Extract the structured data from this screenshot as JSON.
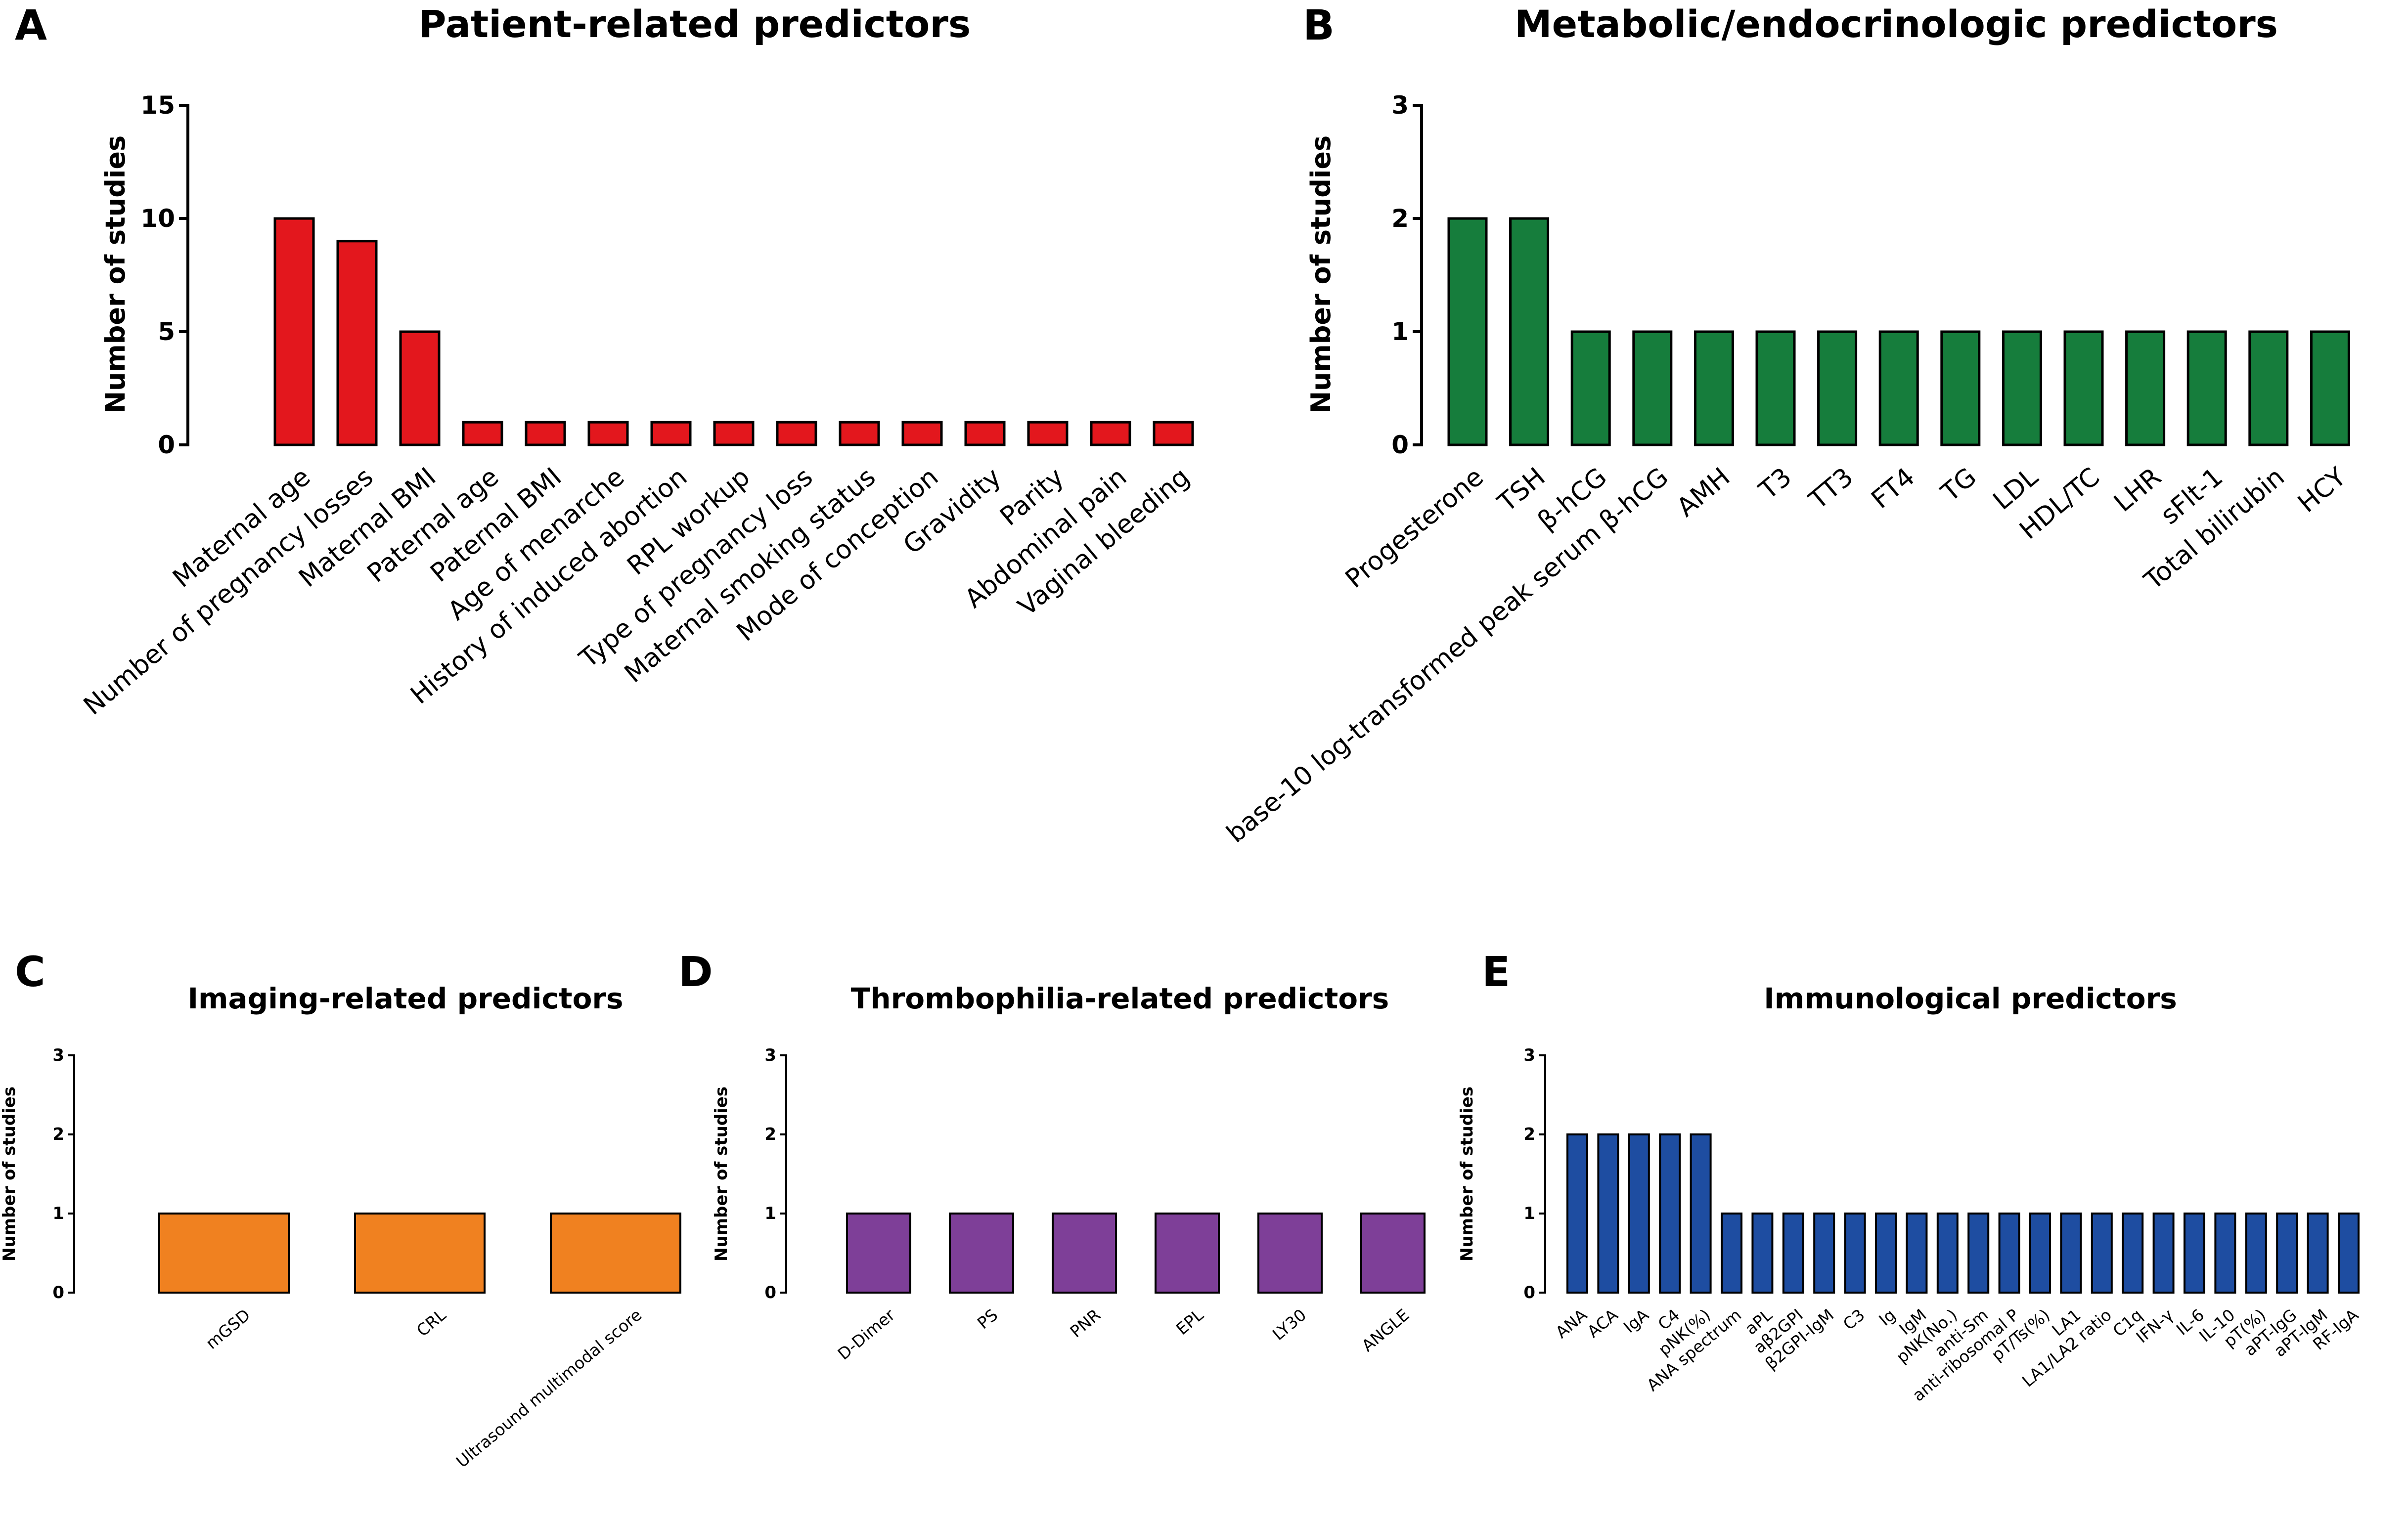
{
  "chart_data": [
    {
      "panel": "A",
      "type": "bar",
      "title": "Patient-related predictors",
      "xlabel": "",
      "ylabel": "Number of studies",
      "ylim": [
        0,
        15
      ],
      "yticks": [
        0,
        5,
        10,
        15
      ],
      "color": "#e3171d",
      "categories": [
        "Maternal age",
        "Number of pregnancy losses",
        "Maternal BMI",
        "Paternal age",
        "Paternal BMI",
        "Age of menarche",
        "History of induced abortion",
        "RPL workup",
        "Type of pregnancy loss",
        "Maternal smoking status",
        "Mode of conception",
        "Gravidity",
        "Parity",
        "Abdominal pain",
        "Vaginal bleeding"
      ],
      "values": [
        10,
        9,
        5,
        1,
        1,
        1,
        1,
        1,
        1,
        1,
        1,
        1,
        1,
        1,
        1
      ]
    },
    {
      "panel": "B",
      "type": "bar",
      "title": "Metabolic/endocrinologic predictors",
      "xlabel": "",
      "ylabel": "Number of studies",
      "ylim": [
        0,
        3
      ],
      "yticks": [
        0,
        1,
        2,
        3
      ],
      "color": "#167d3c",
      "categories": [
        "Progesterone",
        "TSH",
        "β-hCG",
        "base-10 log-transformed peak serum β-hCG",
        "AMH",
        "T3",
        "TT3",
        "FT4",
        "TG",
        "LDL",
        "HDL/TC",
        "LHR",
        "sFlt-1",
        "Total bilirubin",
        "HCY"
      ],
      "values": [
        2,
        2,
        1,
        1,
        1,
        1,
        1,
        1,
        1,
        1,
        1,
        1,
        1,
        1,
        1
      ]
    },
    {
      "panel": "C",
      "type": "bar",
      "title": "Imaging-related predictors",
      "xlabel": "",
      "ylabel": "Number of studies",
      "ylim": [
        0,
        3
      ],
      "yticks": [
        0,
        1,
        2,
        3
      ],
      "color": "#f08120",
      "categories": [
        "mGSD",
        "CRL",
        "Ultrasound multimodal score"
      ],
      "values": [
        1,
        1,
        1
      ]
    },
    {
      "panel": "D",
      "type": "bar",
      "title": "Thrombophilia-related predictors",
      "xlabel": "",
      "ylabel": "Number of studies",
      "ylim": [
        0,
        3
      ],
      "yticks": [
        0,
        1,
        2,
        3
      ],
      "color": "#7e3f98",
      "categories": [
        "D-Dimer",
        "PS",
        "PNR",
        "EPL",
        "LY30",
        "ANGLE"
      ],
      "values": [
        1,
        1,
        1,
        1,
        1,
        1
      ]
    },
    {
      "panel": "E",
      "type": "bar",
      "title": "Immunological predictors",
      "xlabel": "",
      "ylabel": "Number of studies",
      "ylim": [
        0,
        3
      ],
      "yticks": [
        0,
        1,
        2,
        3
      ],
      "color": "#1e4da1",
      "categories": [
        "ANA",
        "ACA",
        "IgA",
        "C4",
        "pNK(%)",
        "ANA spectrum",
        "aPL",
        "aβ2GPI",
        "β2GPI-IgM",
        "C3",
        "Ig",
        "IgM",
        "pNK(No.)",
        "anti-Sm",
        "anti-ribosomal P",
        "pT/Ts(%)",
        "LA1",
        "LA1/LA2 ratio",
        "C1q",
        "IFN-γ",
        "IL-6",
        "IL-10",
        "pT(%)",
        "aPT-IgG",
        "aPT-IgM",
        "RF-IgA"
      ],
      "values": [
        2,
        2,
        2,
        2,
        2,
        1,
        1,
        1,
        1,
        1,
        1,
        1,
        1,
        1,
        1,
        1,
        1,
        1,
        1,
        1,
        1,
        1,
        1,
        1,
        1,
        1
      ]
    }
  ]
}
